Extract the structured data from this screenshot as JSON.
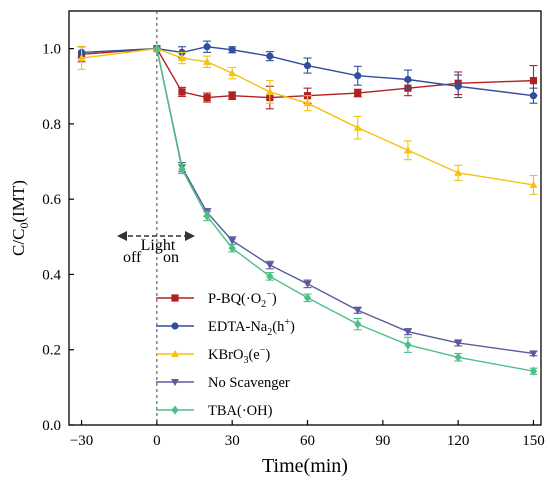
{
  "chart_data": {
    "type": "line",
    "xlabel": "Time(min)",
    "ylabel": "C/C0(IMT)",
    "ylabel_main": "C/C",
    "ylabel_sub": "0",
    "ylabel_tail": "(IMT)",
    "xlim": [
      -35,
      153
    ],
    "ylim": [
      0.0,
      1.1
    ],
    "x_ticks": [
      -30,
      0,
      30,
      60,
      90,
      120,
      150
    ],
    "x_tick_labels": [
      "−30",
      "0",
      "30",
      "60",
      "90",
      "120",
      "150"
    ],
    "y_ticks": [
      0.0,
      0.2,
      0.4,
      0.6,
      0.8,
      1.0
    ],
    "y_tick_labels": [
      "0.0",
      "0.2",
      "0.4",
      "0.6",
      "0.8",
      "1.0"
    ],
    "grid": false,
    "legend_position": "lower-left",
    "divider_x": 0,
    "annotations": {
      "light": "Light",
      "off": "off",
      "on": "on"
    },
    "series": [
      {
        "name": "P-BQ(·O2−)",
        "legend_parts": [
          "P-BQ(·O",
          "2",
          "−",
          ")"
        ],
        "color": "#b0221f",
        "marker": "square",
        "x": [
          -30,
          0,
          10,
          20,
          30,
          45,
          60,
          80,
          100,
          120,
          150
        ],
        "y": [
          0.985,
          1.0,
          0.885,
          0.87,
          0.875,
          0.87,
          0.875,
          0.882,
          0.895,
          0.908,
          0.915
        ],
        "err": [
          0.02,
          0.0,
          0.012,
          0.012,
          0.01,
          0.03,
          0.02,
          0.01,
          0.02,
          0.03,
          0.04
        ]
      },
      {
        "name": "EDTA-Na2(h+)",
        "legend_parts": [
          "EDTA-Na",
          "2",
          "(h",
          "+",
          ")"
        ],
        "color": "#2f4e9e",
        "marker": "circle",
        "x": [
          -30,
          0,
          10,
          20,
          30,
          45,
          60,
          80,
          100,
          120,
          150
        ],
        "y": [
          0.99,
          1.0,
          0.99,
          1.005,
          0.997,
          0.98,
          0.955,
          0.928,
          0.918,
          0.9,
          0.875
        ],
        "err": [
          0.015,
          0.0,
          0.015,
          0.015,
          0.008,
          0.012,
          0.02,
          0.025,
          0.025,
          0.03,
          0.02
        ]
      },
      {
        "name": "KBrO3(e−)",
        "legend_parts": [
          "KBrO",
          "3",
          "(e",
          "−",
          ")"
        ],
        "color": "#f4c20f",
        "marker": "triangle-up",
        "x": [
          -30,
          0,
          10,
          20,
          30,
          45,
          60,
          80,
          100,
          120,
          150
        ],
        "y": [
          0.975,
          1.0,
          0.975,
          0.965,
          0.935,
          0.885,
          0.855,
          0.79,
          0.73,
          0.67,
          0.638
        ],
        "err": [
          0.03,
          0.0,
          0.015,
          0.015,
          0.015,
          0.03,
          0.02,
          0.03,
          0.025,
          0.02,
          0.025
        ]
      },
      {
        "name": "No Scavenger",
        "legend_parts": [
          "No Scavenger"
        ],
        "color": "#5b5a9c",
        "marker": "triangle-down",
        "x": [
          0,
          10,
          20,
          30,
          45,
          60,
          80,
          100,
          120,
          150
        ],
        "y": [
          1.0,
          0.685,
          0.565,
          0.49,
          0.425,
          0.375,
          0.305,
          0.248,
          0.218,
          0.19
        ],
        "err": [
          0.0,
          0.012,
          0.01,
          0.01,
          0.01,
          0.01,
          0.008,
          0.008,
          0.008,
          0.006
        ]
      },
      {
        "name": "TBA(·OH)",
        "legend_parts": [
          "TBA(·OH)"
        ],
        "color": "#4cc088",
        "marker": "diamond",
        "x": [
          0,
          10,
          20,
          30,
          45,
          60,
          80,
          100,
          120,
          150
        ],
        "y": [
          1.0,
          0.68,
          0.555,
          0.47,
          0.395,
          0.338,
          0.268,
          0.213,
          0.18,
          0.143
        ],
        "err": [
          0.0,
          0.012,
          0.012,
          0.01,
          0.01,
          0.01,
          0.015,
          0.02,
          0.01,
          0.008
        ]
      }
    ]
  }
}
